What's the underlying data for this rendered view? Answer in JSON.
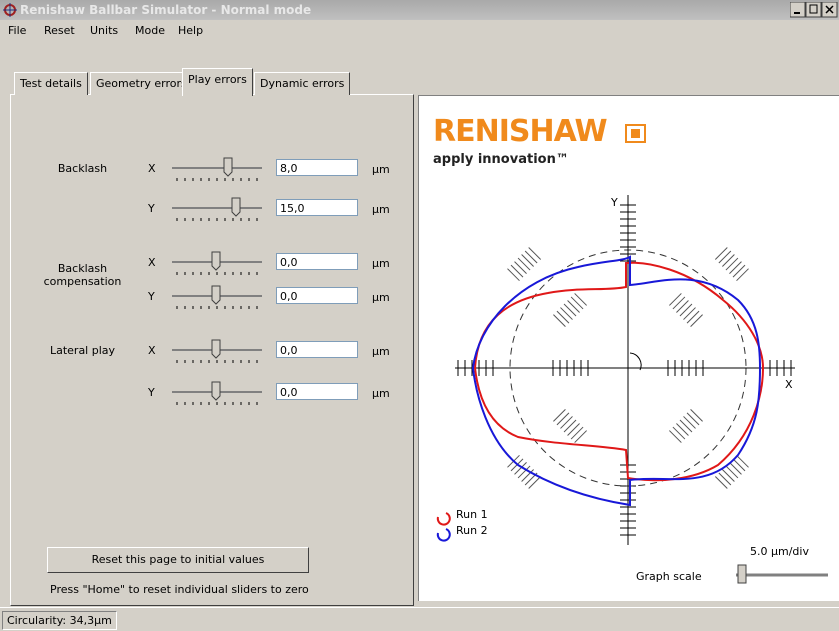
{
  "window": {
    "title": "Renishaw Ballbar Simulator - Normal mode"
  },
  "menu": [
    "File",
    "Reset",
    "Units",
    "Mode",
    "Help"
  ],
  "tabs": [
    "Test details",
    "Geometry errors",
    "Play errors",
    "Dynamic errors"
  ],
  "groups": [
    {
      "label": "Backlash",
      "rows": [
        {
          "axis": "X",
          "value": "8,0",
          "unit": "µm"
        },
        {
          "axis": "Y",
          "value": "15,0",
          "unit": "µm"
        }
      ]
    },
    {
      "label": "Backlash compensation",
      "rows": [
        {
          "axis": "X",
          "value": "0,0",
          "unit": "µm"
        },
        {
          "axis": "Y",
          "value": "0,0",
          "unit": "µm"
        }
      ]
    },
    {
      "label": "Lateral play",
      "rows": [
        {
          "axis": "X",
          "value": "0,0",
          "unit": "µm"
        },
        {
          "axis": "Y",
          "value": "0,0",
          "unit": "µm"
        }
      ]
    }
  ],
  "reset_button": "Reset this page to initial values",
  "hint": "Press \"Home\" to reset individual sliders to zero",
  "plot": {
    "brand": "RENISHAW",
    "tagline": "apply innovation™",
    "x_axis": "X",
    "y_axis": "Y",
    "legend": [
      "Run 1",
      "Run 2"
    ],
    "scale": "5.0 µm/div",
    "graph_scale_label": "Graph scale"
  },
  "status": "Circularity: 34,3µm"
}
